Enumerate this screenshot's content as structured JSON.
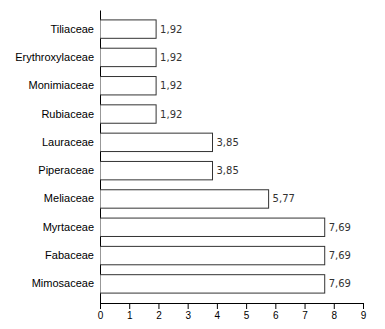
{
  "chart_data": {
    "type": "bar",
    "orientation": "horizontal",
    "categories": [
      "Tiliaceae",
      "Erythroxylaceae",
      "Monimiaceae",
      "Rubiaceae",
      "Lauraceae",
      "Piperaceae",
      "Meliaceae",
      "Myrtaceae",
      "Fabaceae",
      "Mimosaceae"
    ],
    "values": [
      1.92,
      1.92,
      1.92,
      1.92,
      3.85,
      3.85,
      5.77,
      7.69,
      7.69,
      7.69
    ],
    "value_labels": [
      "1,92",
      "1,92",
      "1,92",
      "1,92",
      "3,85",
      "3,85",
      "5,77",
      "7,69",
      "7,69",
      "7,69"
    ],
    "data_labels": true,
    "color": "#ffffff",
    "xlim": [
      0,
      9
    ],
    "xticks": [
      0,
      1,
      2,
      3,
      4,
      5,
      6,
      7,
      8,
      9
    ],
    "grid": false
  }
}
